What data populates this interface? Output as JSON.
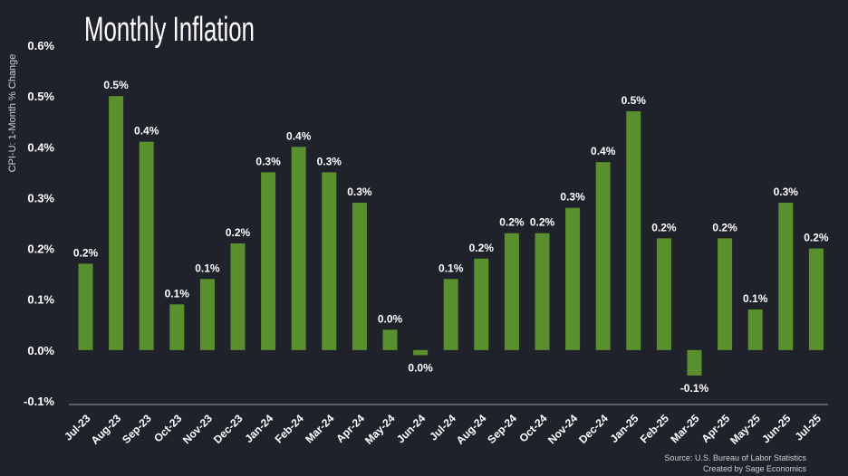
{
  "chart_data": {
    "type": "bar",
    "title": "Monthly Inflation",
    "ylabel": "CPI-U: 1-Month % Change",
    "xlabel": "",
    "ylim": [
      -0.1,
      0.6
    ],
    "yticks": [
      -0.1,
      0.0,
      0.1,
      0.2,
      0.3,
      0.4,
      0.5,
      0.6
    ],
    "ytick_labels": [
      "-0.1%",
      "0.0%",
      "0.1%",
      "0.2%",
      "0.3%",
      "0.4%",
      "0.5%",
      "0.6%"
    ],
    "grid": false,
    "legend": "none",
    "bar_color": "#5a8f2e",
    "categories": [
      "Jul-23",
      "Aug-23",
      "Sep-23",
      "Oct-23",
      "Nov-23",
      "Dec-23",
      "Jan-24",
      "Feb-24",
      "Mar-24",
      "Apr-24",
      "May-24",
      "Jun-24",
      "Jul-24",
      "Aug-24",
      "Sep-24",
      "Oct-24",
      "Nov-24",
      "Dec-24",
      "Jan-25",
      "Feb-25",
      "Mar-25",
      "Apr-25",
      "May-25",
      "Jun-25",
      "Jul-25"
    ],
    "values": [
      0.17,
      0.5,
      0.41,
      0.09,
      0.14,
      0.21,
      0.35,
      0.4,
      0.35,
      0.29,
      0.04,
      -0.01,
      0.14,
      0.18,
      0.23,
      0.23,
      0.28,
      0.37,
      0.47,
      0.22,
      -0.05,
      0.22,
      0.08,
      0.29,
      0.2
    ],
    "data_labels": [
      "0.2%",
      "0.5%",
      "0.4%",
      "0.1%",
      "0.1%",
      "0.2%",
      "0.3%",
      "0.4%",
      "0.3%",
      "0.3%",
      "0.0%",
      "0.0%",
      "0.1%",
      "0.2%",
      "0.2%",
      "0.2%",
      "0.3%",
      "0.4%",
      "0.5%",
      "0.2%",
      "-0.1%",
      "0.2%",
      "0.1%",
      "0.3%",
      "0.2%"
    ]
  },
  "footer": {
    "source": "Source: U.S. Bureau of Labor Statistics",
    "credit": "Created by Sage Economics"
  },
  "colors": {
    "background": "#1f222a",
    "text": "#ffffff",
    "axis": "#9a9a9a"
  }
}
